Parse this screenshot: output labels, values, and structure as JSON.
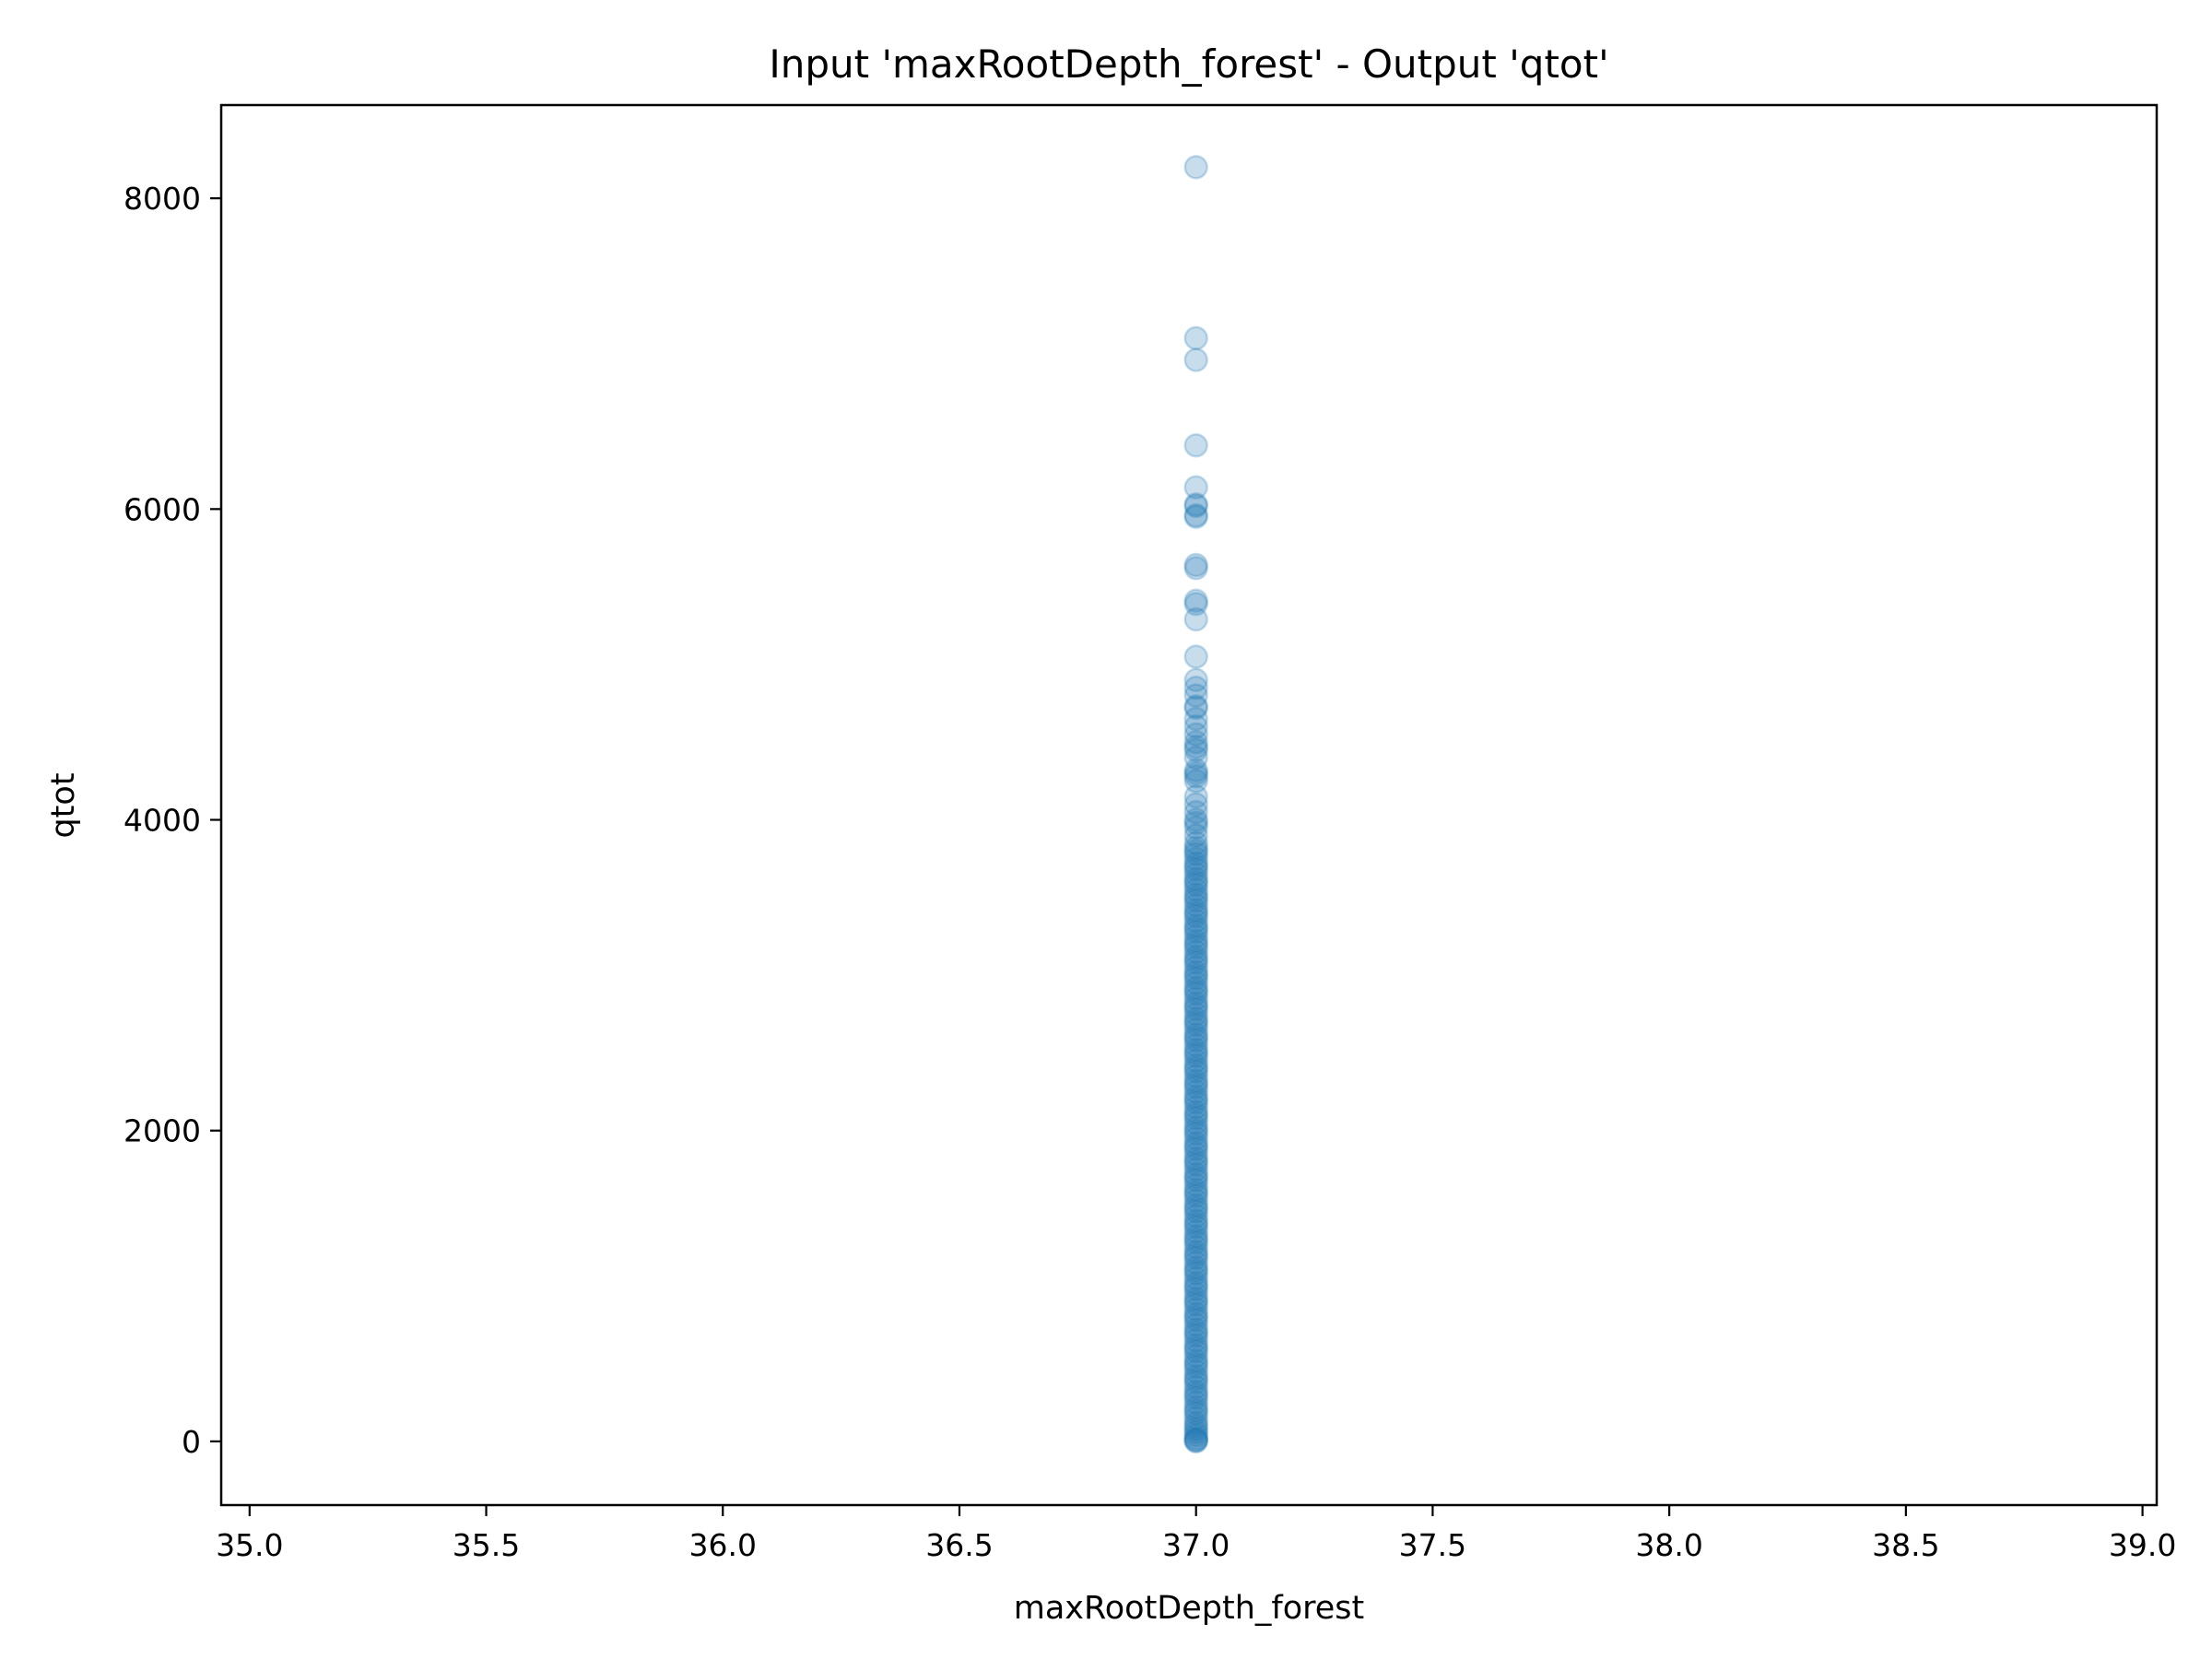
{
  "chart_data": {
    "type": "scatter",
    "title": "Input 'maxRootDepth_forest' - Output 'qtot'",
    "xlabel": "maxRootDepth_forest",
    "ylabel": "qtot",
    "xlim": [
      34.94,
      39.03
    ],
    "ylim": [
      -410,
      8600
    ],
    "xticks": [
      35.0,
      35.5,
      36.0,
      36.5,
      37.0,
      37.5,
      38.0,
      38.5,
      39.0
    ],
    "xtick_labels": [
      "35.0",
      "35.5",
      "36.0",
      "36.5",
      "37.0",
      "37.5",
      "38.0",
      "38.5",
      "39.0"
    ],
    "yticks": [
      0,
      2000,
      4000,
      6000,
      8000
    ],
    "ytick_labels": [
      "0",
      "2000",
      "4000",
      "6000",
      "8000"
    ],
    "grid": false,
    "legend": "none",
    "marker_color": "#1f77b4",
    "marker_alpha": 0.25,
    "series": [
      {
        "x_constant": 37.0,
        "y": [
          8200,
          7100,
          6960,
          6410,
          6140,
          6030,
          6020,
          5960,
          5950,
          5640,
          5620,
          5410,
          5390,
          5290,
          5050,
          4900,
          4850,
          4800,
          4730,
          4720,
          4650,
          4600,
          4550,
          4500,
          4470,
          4450,
          4400,
          4320,
          4300,
          4280,
          4250,
          4150,
          4100,
          4050,
          4000,
          3980,
          3950,
          3900,
          3850,
          3820,
          3800,
          3780,
          3750,
          3720,
          3700,
          3680,
          3650,
          3620,
          3600,
          3580,
          3550,
          3520,
          3500,
          3480,
          3450,
          3420,
          3400,
          3380,
          3350,
          3320,
          3300,
          3280,
          3250,
          3220,
          3200,
          3180,
          3150,
          3120,
          3100,
          3080,
          3050,
          3020,
          3000,
          2980,
          2950,
          2920,
          2900,
          2880,
          2850,
          2820,
          2800,
          2780,
          2750,
          2720,
          2700,
          2680,
          2650,
          2620,
          2600,
          2580,
          2550,
          2520,
          2500,
          2480,
          2450,
          2420,
          2400,
          2380,
          2350,
          2320,
          2300,
          2280,
          2250,
          2220,
          2200,
          2180,
          2150,
          2120,
          2100,
          2080,
          2050,
          2020,
          2000,
          1980,
          1950,
          1920,
          1900,
          1880,
          1850,
          1820,
          1800,
          1780,
          1750,
          1720,
          1700,
          1680,
          1650,
          1620,
          1600,
          1580,
          1550,
          1520,
          1500,
          1480,
          1450,
          1420,
          1400,
          1380,
          1350,
          1320,
          1300,
          1280,
          1250,
          1220,
          1200,
          1180,
          1150,
          1120,
          1100,
          1080,
          1050,
          1020,
          1000,
          980,
          950,
          920,
          900,
          880,
          850,
          820,
          800,
          780,
          750,
          720,
          700,
          680,
          650,
          620,
          600,
          580,
          550,
          520,
          500,
          480,
          450,
          420,
          400,
          380,
          350,
          320,
          300,
          280,
          250,
          220,
          200,
          180,
          150,
          120,
          100,
          80,
          60,
          40,
          20,
          10,
          5,
          0
        ]
      }
    ]
  }
}
